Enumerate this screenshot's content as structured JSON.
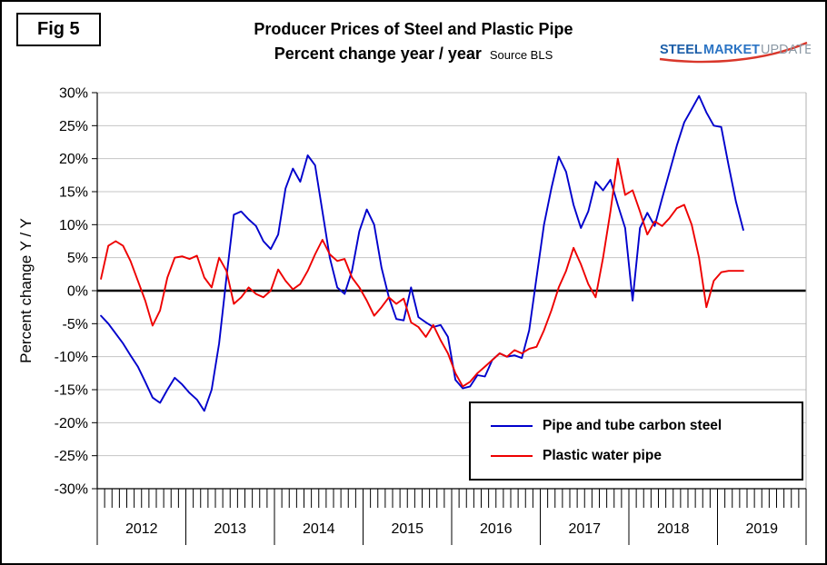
{
  "figure": {
    "fig_label": "Fig 5"
  },
  "header": {
    "title_line1": "Producer Prices of Steel and Plastic Pipe",
    "title_line2": "Percent change year / year",
    "source": "Source BLS"
  },
  "logo": {
    "word1": "STEEL",
    "word2": "MARKET",
    "word3": "UPDATE",
    "blue": "#1c5ea8",
    "gray": "#8d9aa6",
    "red": "#d9372b"
  },
  "axes": {
    "y_label": "Percent change Y / Y",
    "y_ticks": [
      "30%",
      "25%",
      "20%",
      "15%",
      "10%",
      "5%",
      "0%",
      "-5%",
      "-10%",
      "-15%",
      "-20%",
      "-25%",
      "-30%"
    ],
    "x_years": [
      "2012",
      "2013",
      "2014",
      "2015",
      "2016",
      "2017",
      "2018",
      "2019"
    ]
  },
  "legend": {
    "entries": [
      {
        "label": "Pipe and tube carbon steel",
        "color": "#0000CC"
      },
      {
        "label": "Plastic water pipe",
        "color": "#EE0000"
      }
    ]
  },
  "chart_data": {
    "type": "line",
    "title": "Producer Prices of Steel and Plastic Pipe",
    "subtitle": "Percent change year / year",
    "source": "Source BLS",
    "ylabel": "Percent change Y / Y",
    "ylim": [
      -30,
      30
    ],
    "ytick_step": 5,
    "grid": "horizontal",
    "zero_line": true,
    "legend_position": "inside lower right",
    "x_freq": "monthly",
    "x_start": "2012-01",
    "x_end": "2019-04",
    "x_year_labels": [
      "2012",
      "2013",
      "2014",
      "2015",
      "2016",
      "2017",
      "2018",
      "2019"
    ],
    "series": [
      {
        "name": "Pipe and tube carbon steel",
        "color": "#0000CC",
        "values": [
          -3.8,
          -5,
          -6.5,
          -8,
          -9.8,
          -11.5,
          -13.8,
          -16.2,
          -17,
          -15,
          -13.2,
          -14.2,
          -15.5,
          -16.5,
          -18.2,
          -15,
          -8,
          2,
          11.5,
          12,
          10.8,
          9.8,
          7.5,
          6.3,
          8.5,
          15.5,
          18.5,
          16.5,
          20.5,
          19,
          12,
          5,
          0.5,
          -0.5,
          3,
          9,
          12.3,
          10,
          3.5,
          -1,
          -4.3,
          -4.5,
          0.5,
          -4,
          -4.8,
          -5.5,
          -5.2,
          -7,
          -13.5,
          -14.8,
          -14.5,
          -12.8,
          -13,
          -10.5,
          -9.5,
          -10,
          -9.8,
          -10.2,
          -6,
          2,
          10,
          15.5,
          20.3,
          18,
          13,
          9.5,
          12,
          16.5,
          15.2,
          16.8,
          13,
          9.5,
          -1.5,
          9.5,
          11.8,
          9.8,
          14,
          18,
          22,
          25.5,
          27.5,
          29.5,
          27,
          25,
          24.8,
          19,
          13.5,
          9.2
        ]
      },
      {
        "name": "Plastic water pipe",
        "color": "#EE0000",
        "values": [
          1.8,
          6.8,
          7.5,
          6.8,
          4.5,
          1.5,
          -1.5,
          -5.3,
          -3,
          2,
          5,
          5.2,
          4.8,
          5.3,
          2,
          0.5,
          5,
          3,
          -2,
          -1,
          0.5,
          -0.5,
          -1,
          0,
          3.2,
          1.5,
          0.2,
          1,
          3,
          5.5,
          7.7,
          5.5,
          4.5,
          4.8,
          2,
          0.5,
          -1.5,
          -3.8,
          -2.5,
          -1,
          -2,
          -1.2,
          -4.8,
          -5.5,
          -7,
          -5.2,
          -7.5,
          -9.5,
          -12.5,
          -14.5,
          -13.8,
          -12.5,
          -11.5,
          -10.5,
          -9.5,
          -10,
          -9,
          -9.5,
          -8.8,
          -8.5,
          -6,
          -3,
          0.5,
          3,
          6.5,
          4,
          1,
          -1,
          5,
          12,
          20,
          14.5,
          15.2,
          12,
          8.5,
          10.5,
          9.8,
          11,
          12.5,
          13,
          10,
          5,
          -2.5,
          1.5,
          2.8,
          3,
          3,
          3
        ]
      }
    ]
  }
}
